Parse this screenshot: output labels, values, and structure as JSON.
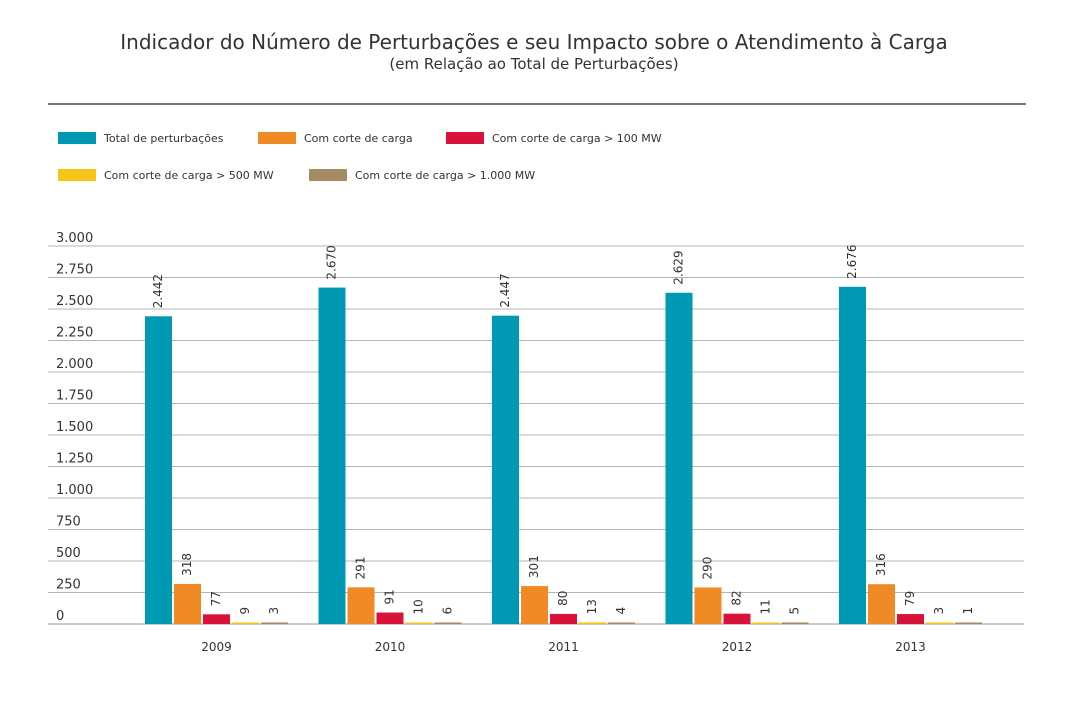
{
  "title": "Indicador do Número de Perturbações e seu Impacto sobre o Atendimento à Carga",
  "subtitle": "(em Relação ao Total de Perturbações)",
  "chart_data": {
    "type": "bar",
    "title": "Indicador do Número de Perturbações e seu Impacto sobre o Atendimento à Carga",
    "subtitle": "(em Relação ao Total de Perturbações)",
    "xlabel": "",
    "ylabel": "",
    "ylim": [
      0,
      3000
    ],
    "grid": true,
    "legend_position": "top-left",
    "categories": [
      "2009",
      "2010",
      "2011",
      "2012",
      "2013"
    ],
    "y_ticks": [
      {
        "value": 0,
        "label": "0"
      },
      {
        "value": 250,
        "label": "250"
      },
      {
        "value": 500,
        "label": "500"
      },
      {
        "value": 750,
        "label": "750"
      },
      {
        "value": 1000,
        "label": "1.000"
      },
      {
        "value": 1250,
        "label": "1.250"
      },
      {
        "value": 1500,
        "label": "1.500"
      },
      {
        "value": 1750,
        "label": "1.750"
      },
      {
        "value": 2000,
        "label": "2.000"
      },
      {
        "value": 2250,
        "label": "2.250"
      },
      {
        "value": 2500,
        "label": "2.500"
      },
      {
        "value": 2750,
        "label": "2.750"
      },
      {
        "value": 3000,
        "label": "3.000"
      }
    ],
    "series": [
      {
        "name": "Total de perturbações",
        "color": "#0099B4",
        "values": [
          2442,
          2670,
          2447,
          2629,
          2676
        ],
        "labels": [
          "2.442",
          "2.670",
          "2.447",
          "2.629",
          "2.676"
        ]
      },
      {
        "name": "Com corte de carga",
        "color": "#F08A24",
        "values": [
          318,
          291,
          301,
          290,
          316
        ],
        "labels": [
          "318",
          "291",
          "301",
          "290",
          "316"
        ]
      },
      {
        "name": "Com corte de carga > 100 MW",
        "color": "#D9123B",
        "values": [
          77,
          91,
          80,
          82,
          79
        ],
        "labels": [
          "77",
          "91",
          "80",
          "82",
          "79"
        ]
      },
      {
        "name": "Com corte de carga > 500 MW",
        "color": "#F5C518",
        "values": [
          9,
          10,
          13,
          11,
          3
        ],
        "labels": [
          "9",
          "10",
          "13",
          "11",
          "3"
        ]
      },
      {
        "name": "Com corte de carga > 1.000 MW",
        "color": "#A68A64",
        "values": [
          3,
          6,
          4,
          5,
          1
        ],
        "labels": [
          "3",
          "6",
          "4",
          "5",
          "1"
        ]
      }
    ]
  }
}
